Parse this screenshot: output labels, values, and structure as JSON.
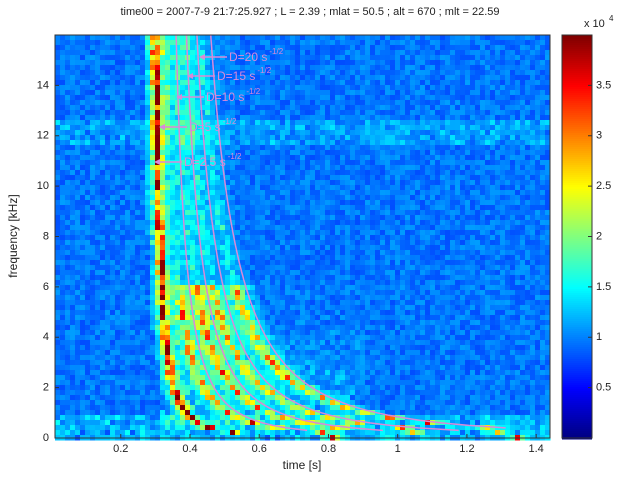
{
  "chart_data": {
    "type": "spectrogram",
    "title": "time00 = 2007-7-9 21:7:25.927 ; L = 2.39 ; mlat = 50.5 ; alt = 670 ; mlt = 22.59",
    "xlabel": "time [s]",
    "ylabel": "frequency [kHz]",
    "xlim": [
      0.01,
      1.44
    ],
    "xticks": [
      0.2,
      0.4,
      0.6,
      0.8,
      1,
      1.2,
      1.4
    ],
    "ylim": [
      0,
      16
    ],
    "yticks": [
      0,
      2,
      4,
      6,
      8,
      10,
      12,
      14
    ],
    "colorbar": {
      "clim": [
        0,
        4
      ],
      "ticks": [
        0.5,
        1,
        1.5,
        2,
        2.5,
        3,
        3.5
      ],
      "exponent_prefix": "x 10",
      "exponent": "4",
      "colormap": "jet"
    },
    "annotations": [
      {
        "text": "D=20 s",
        "superscript": "-1/2"
      },
      {
        "text": "D=15 s",
        "superscript": "-1/2"
      },
      {
        "text": "D=10 s",
        "superscript": "-1/2"
      },
      {
        "text": "D=5 s",
        "superscript": "-1/2"
      },
      {
        "text": "D=2.5 s",
        "superscript": "-1/2"
      }
    ],
    "annotation_color": "#d98ad9"
  }
}
